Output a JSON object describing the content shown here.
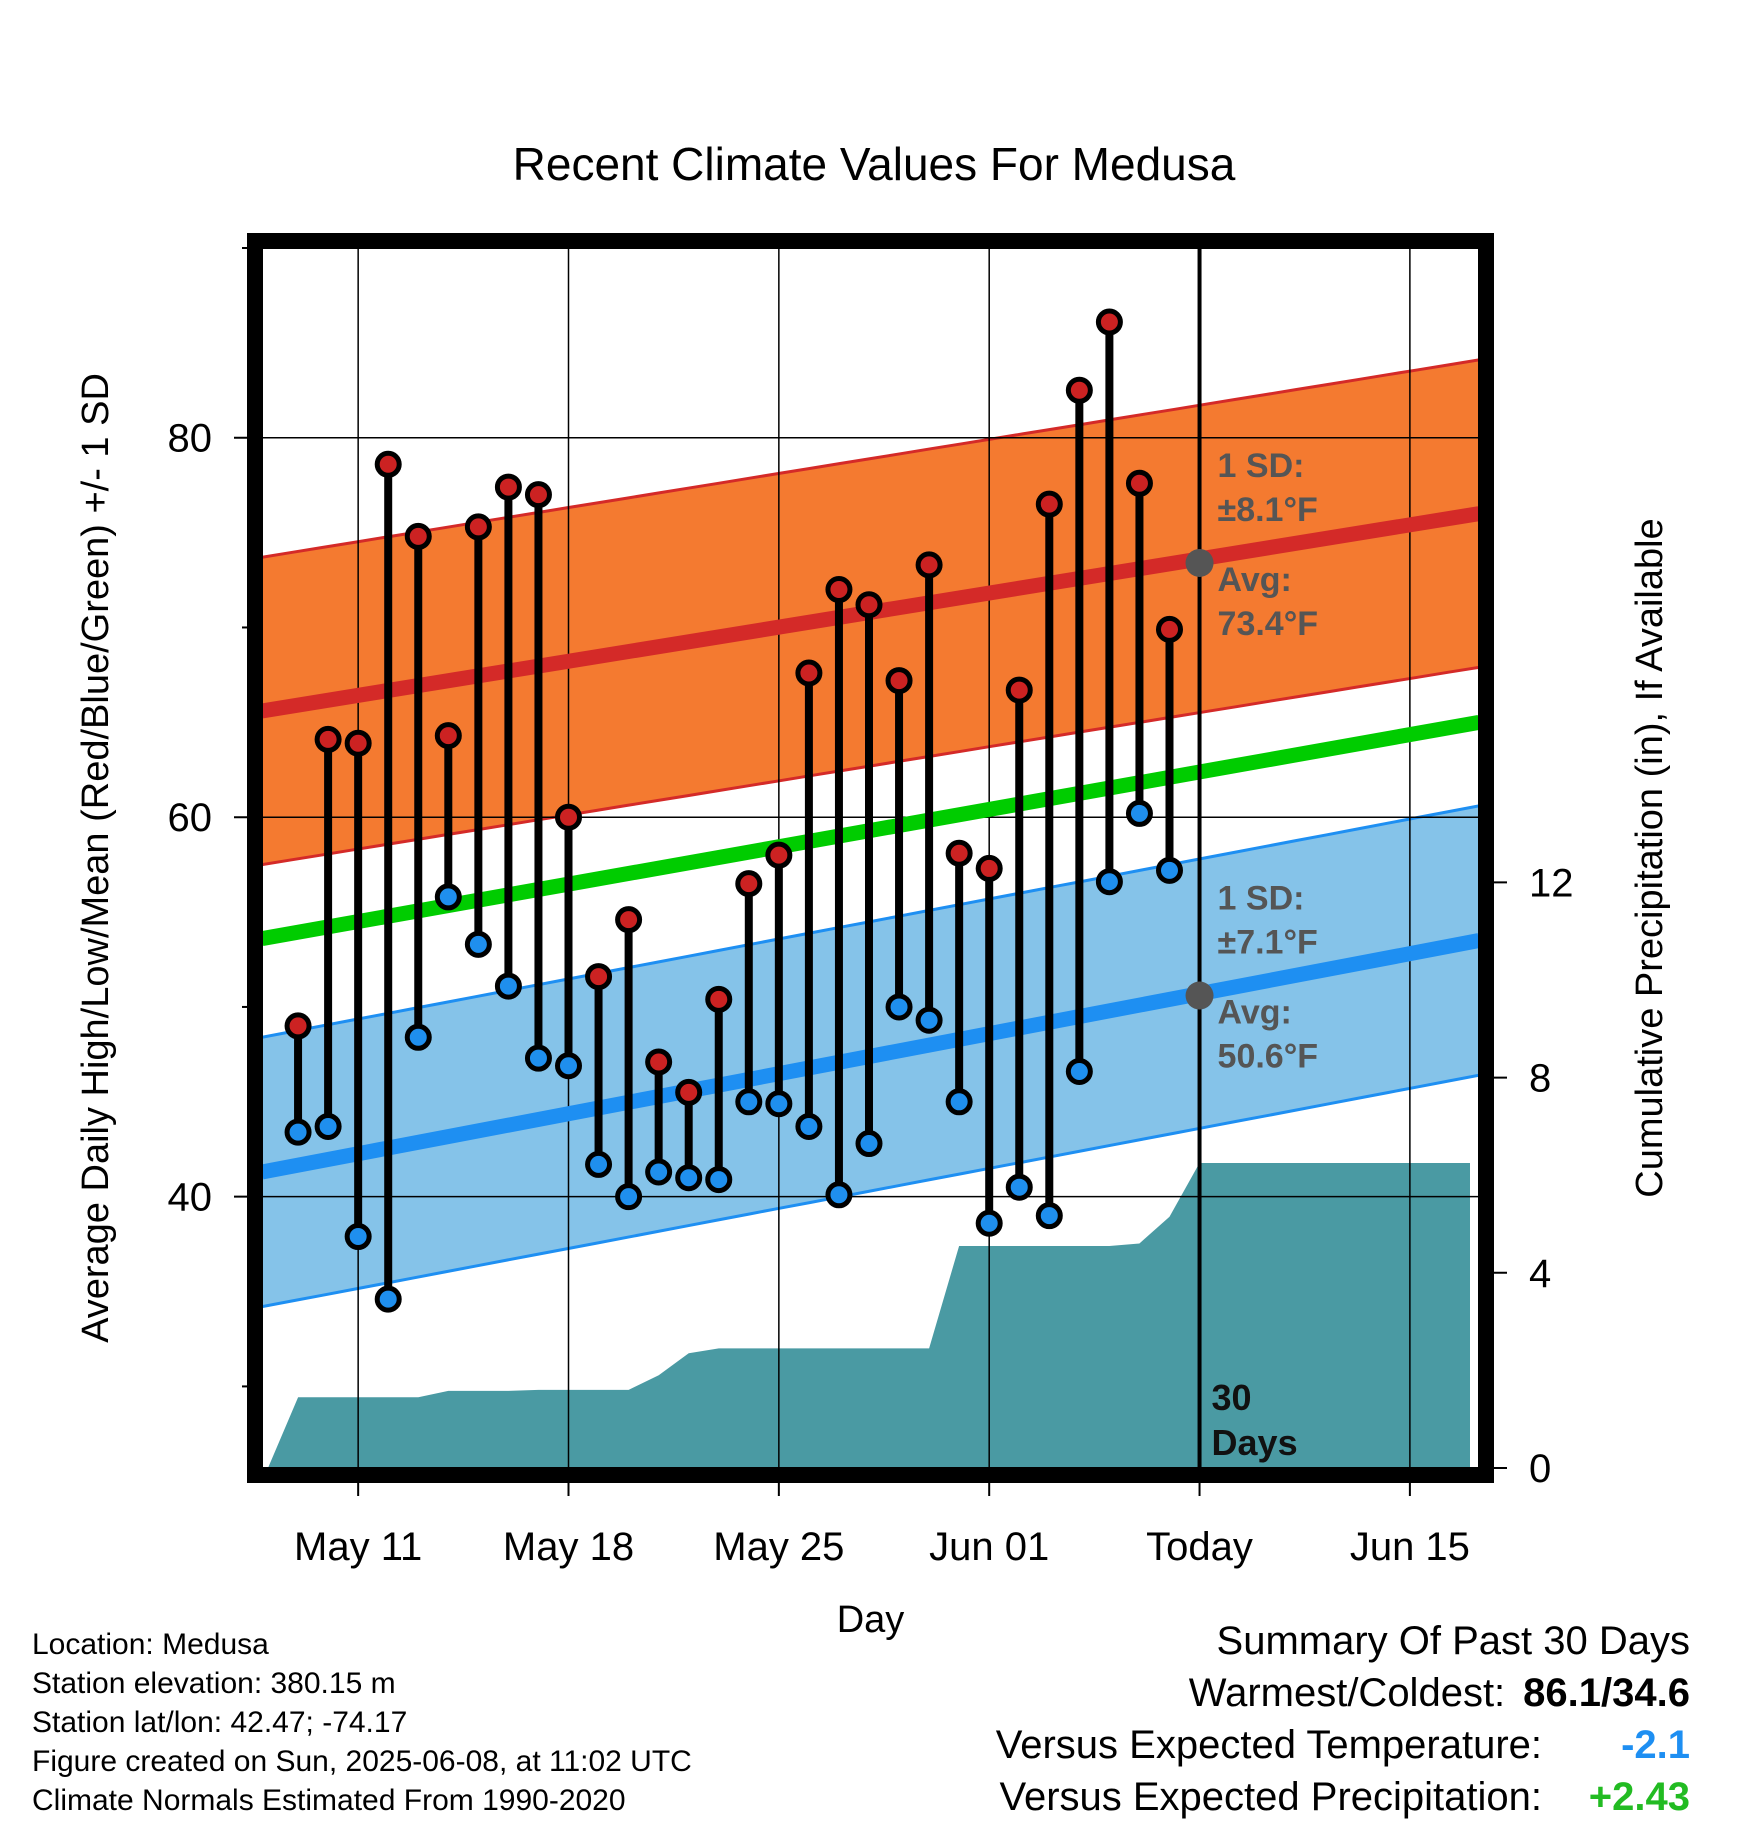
{
  "chart_data": {
    "type": "line",
    "title": "Recent Climate Values For Medusa",
    "xlabel": "Day",
    "ylabel": "Average Daily High/Low/Mean (Red/Blue/Green) +/- 1 SD",
    "y2label": "Cumulative Precipitation (in), If Available",
    "x_ticks": [
      "May 11",
      "May 18",
      "May 25",
      "Jun 01",
      "Today",
      "Jun 15"
    ],
    "x_tick_days": [
      11,
      18,
      25,
      32,
      39,
      46
    ],
    "xlim_days": [
      7.8,
      48.3
    ],
    "today_day": 39,
    "ylim": [
      25.7,
      90
    ],
    "y_ticks": [
      40,
      60,
      80
    ],
    "y_minor_ticks": [
      30,
      50,
      70,
      90
    ],
    "y2lim": [
      0,
      25
    ],
    "y2_ticks": [
      0,
      4,
      8,
      12
    ],
    "days": [
      9,
      10,
      11,
      12,
      13,
      14,
      15,
      16,
      17,
      18,
      19,
      20,
      21,
      22,
      23,
      24,
      25,
      26,
      27,
      28,
      29,
      30,
      31,
      32,
      33,
      34,
      35,
      36,
      37,
      38
    ],
    "highs": [
      49.0,
      64.1,
      63.9,
      78.6,
      74.8,
      64.3,
      75.3,
      77.4,
      77.0,
      60.0,
      51.6,
      54.6,
      47.1,
      45.5,
      50.4,
      56.5,
      58.0,
      67.6,
      72.0,
      71.2,
      67.2,
      73.3,
      58.1,
      57.3,
      66.7,
      76.5,
      82.5,
      86.1,
      77.6,
      69.9
    ],
    "lows": [
      43.4,
      43.7,
      37.9,
      34.6,
      48.4,
      55.8,
      53.3,
      51.1,
      47.3,
      46.9,
      41.7,
      40.0,
      41.3,
      41.0,
      40.9,
      45.0,
      44.9,
      43.7,
      40.1,
      42.8,
      50.0,
      49.3,
      45.0,
      38.6,
      40.5,
      39.0,
      46.6,
      56.6,
      60.2,
      57.2
    ],
    "normals": {
      "high_avg_start": 65.6,
      "high_avg_end": 76.0,
      "high_sd": 8.1,
      "low_avg_start": 41.3,
      "low_avg_end": 53.5,
      "low_sd": 7.1,
      "mean_start": 53.6,
      "mean_end": 65.0
    },
    "precip_days": [
      8.0,
      9.0,
      10.0,
      11.0,
      12.0,
      13.0,
      14.0,
      15.0,
      16.0,
      17.0,
      18.0,
      19.0,
      20.0,
      21.0,
      22.0,
      23.0,
      24.0,
      25.0,
      26.0,
      27.0,
      28.0,
      29.0,
      30.0,
      31.0,
      32.0,
      33.0,
      34.0,
      35.0,
      36.0,
      37.0,
      38.0,
      39.0,
      40.0,
      48.0
    ],
    "precip_cum": [
      0.0,
      1.45,
      1.45,
      1.45,
      1.45,
      1.45,
      1.58,
      1.58,
      1.58,
      1.6,
      1.6,
      1.6,
      1.6,
      1.9,
      2.35,
      2.45,
      2.45,
      2.45,
      2.45,
      2.45,
      2.45,
      2.45,
      2.45,
      4.55,
      4.55,
      4.55,
      4.55,
      4.55,
      4.55,
      4.6,
      5.15,
      6.25,
      6.25,
      6.25
    ],
    "annotations": {
      "high_sd_label": "1 SD:",
      "high_sd_value": "±8.1°F",
      "high_avg_label": "Avg:",
      "high_avg_value": "73.4°F",
      "high_avg_at_today": 73.4,
      "low_sd_label": "1 SD:",
      "low_sd_value": "±7.1°F",
      "low_avg_label": "Avg:",
      "low_avg_value": "50.6°F",
      "low_avg_at_today": 50.6,
      "window_number": "30",
      "window_unit": "Days"
    },
    "colors": {
      "high_band": "#f47a30",
      "high_line": "#d42a28",
      "low_band": "#85c3e9",
      "low_line": "#1e8ff2",
      "mean_line": "#00cc00",
      "precip": "#4a9aa3",
      "high_marker": "#cc2222",
      "low_marker": "#1f8fee"
    }
  },
  "footer": {
    "location": "Location: Medusa",
    "elevation": "Station elevation: 380.15 m",
    "latlon": "Station lat/lon: 42.47; -74.17",
    "created": "Figure created on Sun, 2025-06-08, at 11:02 UTC",
    "normals": "Climate Normals Estimated From 1990-2020"
  },
  "summary": {
    "heading": "Summary Of Past 30 Days",
    "warmest_label": "Warmest/Coldest:",
    "warmest_value": "86.1/34.6",
    "temp_label": "Versus Expected Temperature:",
    "temp_value": "-2.1",
    "temp_color": "#1e8ff2",
    "precip_label": "Versus Expected Precipitation:",
    "precip_value": "+2.43",
    "precip_color": "#22bb22"
  }
}
